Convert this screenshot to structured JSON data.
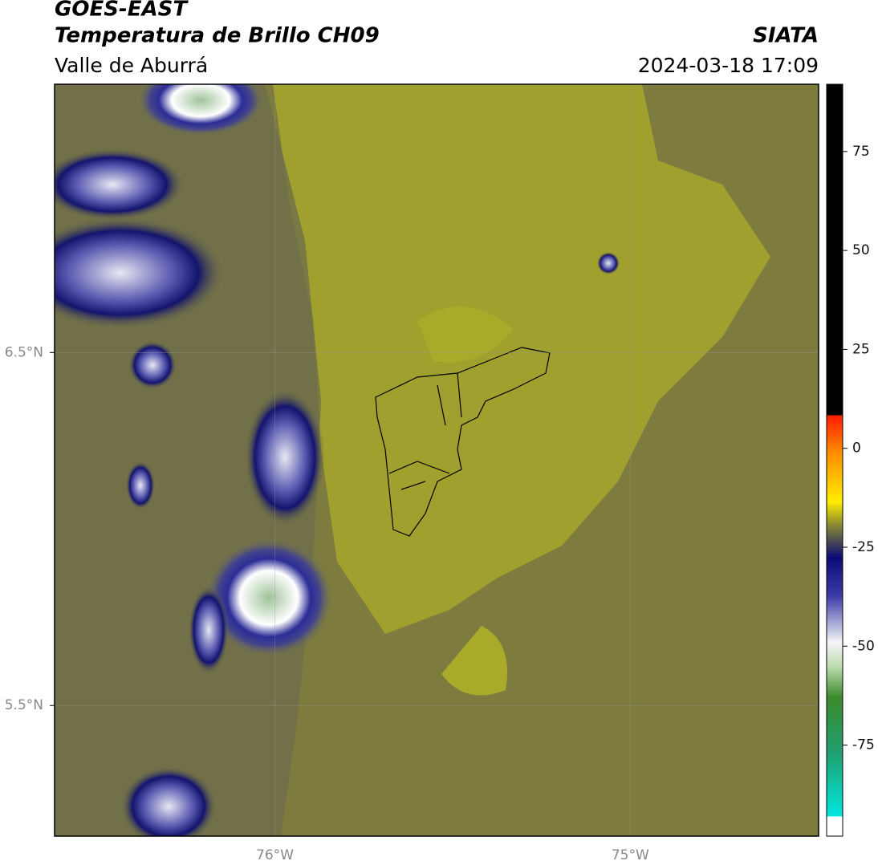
{
  "chart_data": {
    "type": "map",
    "title": "GOES-EAST",
    "subtitle": "Temperatura de Brillo CH09",
    "region": "Valle de Aburrá",
    "source": "SIATA",
    "datetime": "2024-03-18 17:09",
    "xlim": [
      -76.62,
      -74.47
    ],
    "ylim": [
      5.13,
      7.26
    ],
    "xticks": [
      {
        "value": -76,
        "label": "76°W"
      },
      {
        "value": -75,
        "label": "75°W"
      }
    ],
    "yticks": [
      {
        "value": 6.5,
        "label": "6.5°N"
      },
      {
        "value": 5.5,
        "label": "5.5°N"
      }
    ],
    "grid": true,
    "colorbar": {
      "lim": [
        -98,
        92
      ],
      "ticks": [
        75,
        50,
        25,
        0,
        -25,
        -50,
        -75
      ]
    }
  }
}
